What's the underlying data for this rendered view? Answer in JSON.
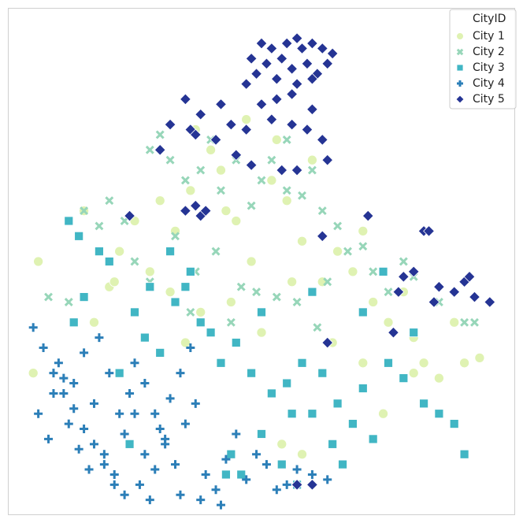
{
  "chart_data": {
    "type": "scatter",
    "legend_title": "CityID",
    "legend_loc": "upper right",
    "xlim": [
      0,
      100
    ],
    "ylim": [
      0,
      100
    ],
    "series": [
      {
        "name": "City 1",
        "color": "#dff2b2",
        "marker": "circle",
        "x": [
          6,
          5,
          15,
          20,
          22,
          25,
          30,
          33,
          36,
          40,
          42,
          45,
          48,
          52,
          55,
          58,
          60,
          62,
          65,
          68,
          70,
          72,
          75,
          78,
          80,
          82,
          85,
          88,
          90,
          93,
          28,
          32,
          38,
          44,
          50,
          56,
          64,
          70,
          74,
          80,
          37,
          47,
          53,
          58,
          17,
          21,
          43,
          54,
          46,
          35
        ],
        "values": [
          50,
          28,
          60,
          45,
          52,
          58,
          62,
          56,
          64,
          72,
          68,
          58,
          50,
          66,
          62,
          54,
          70,
          46,
          52,
          48,
          56,
          42,
          38,
          44,
          35,
          30,
          27,
          38,
          30,
          31,
          48,
          44,
          40,
          42,
          36,
          46,
          34,
          30,
          20,
          28,
          76,
          78,
          74,
          12,
          38,
          46,
          60,
          14,
          8,
          34
        ]
      },
      {
        "name": "City 2",
        "color": "#97d6b9",
        "marker": "x",
        "x": [
          8,
          12,
          15,
          18,
          20,
          28,
          30,
          32,
          35,
          38,
          40,
          42,
          45,
          48,
          50,
          52,
          55,
          58,
          60,
          62,
          65,
          67,
          70,
          72,
          75,
          78,
          80,
          85,
          90,
          92,
          25,
          33,
          37,
          41,
          46,
          53,
          57,
          61,
          44,
          49,
          36,
          28,
          23,
          55,
          63
        ],
        "values": [
          43,
          42,
          60,
          57,
          62,
          72,
          75,
          70,
          66,
          68,
          74,
          64,
          70,
          61,
          66,
          70,
          64,
          63,
          68,
          60,
          57,
          52,
          53,
          48,
          44,
          50,
          47,
          42,
          38,
          38,
          50,
          55,
          48,
          52,
          45,
          43,
          42,
          37,
          38,
          44,
          40,
          46,
          58,
          74,
          46
        ]
      },
      {
        "name": "City 3",
        "color": "#41b6c4",
        "marker": "square",
        "x": [
          12,
          14,
          18,
          20,
          15,
          13,
          25,
          27,
          30,
          33,
          35,
          38,
          40,
          42,
          45,
          48,
          50,
          52,
          55,
          58,
          60,
          62,
          65,
          68,
          70,
          72,
          75,
          78,
          80,
          82,
          85,
          88,
          90,
          22,
          24,
          28,
          32,
          36,
          44,
          46,
          50,
          54,
          56,
          60,
          64,
          66,
          70,
          74,
          43,
          57
        ],
        "values": [
          58,
          55,
          52,
          50,
          43,
          38,
          40,
          35,
          32,
          42,
          45,
          38,
          36,
          30,
          34,
          28,
          40,
          24,
          26,
          30,
          20,
          28,
          22,
          18,
          25,
          15,
          30,
          27,
          36,
          22,
          20,
          18,
          12,
          28,
          14,
          45,
          52,
          48,
          12,
          8,
          16,
          10,
          20,
          44,
          14,
          10,
          40,
          48,
          8,
          6
        ]
      },
      {
        "name": "City 4",
        "color": "#2c7fb8",
        "marker": "plus",
        "x": [
          5,
          7,
          9,
          11,
          6,
          8,
          10,
          13,
          15,
          17,
          12,
          14,
          16,
          18,
          20,
          22,
          24,
          19,
          21,
          23,
          25,
          27,
          29,
          31,
          33,
          26,
          28,
          30,
          32,
          34,
          36,
          9,
          11,
          13,
          15,
          17,
          19,
          21,
          23,
          25,
          27,
          29,
          31,
          35,
          37,
          39,
          41,
          43,
          45,
          47,
          49,
          51,
          53,
          55,
          57,
          60,
          63,
          34,
          38,
          42
        ],
        "values": [
          37,
          33,
          28,
          24,
          20,
          15,
          30,
          26,
          32,
          22,
          18,
          13,
          9,
          35,
          28,
          20,
          24,
          12,
          8,
          16,
          30,
          26,
          20,
          14,
          10,
          6,
          3,
          17,
          23,
          28,
          33,
          24,
          27,
          21,
          17,
          14,
          10,
          6,
          4,
          20,
          12,
          9,
          15,
          18,
          22,
          8,
          5,
          11,
          16,
          7,
          12,
          10,
          5,
          6,
          9,
          8,
          7,
          4,
          3,
          2
        ]
      },
      {
        "name": "City 5",
        "color": "#253494",
        "marker": "diamond",
        "x": [
          50,
          52,
          55,
          57,
          58,
          60,
          62,
          64,
          48,
          51,
          54,
          56,
          59,
          61,
          63,
          49,
          53,
          57,
          60,
          47,
          35,
          42,
          50,
          53,
          56,
          60,
          38,
          32,
          36,
          44,
          47,
          52,
          56,
          59,
          62,
          30,
          37,
          41,
          45,
          48,
          54,
          57,
          63,
          24,
          35,
          37,
          38,
          39,
          62,
          71,
          82,
          83,
          78,
          80,
          85,
          90,
          91,
          88,
          92,
          95,
          84,
          77,
          76,
          63,
          57,
          60
        ],
        "values": [
          93,
          92,
          93,
          94,
          92,
          93,
          92,
          91,
          90,
          89,
          90,
          88,
          89,
          87,
          89,
          87,
          86,
          85,
          86,
          85,
          82,
          81,
          81,
          82,
          83,
          80,
          79,
          77,
          76,
          77,
          76,
          78,
          77,
          76,
          74,
          72,
          75,
          74,
          71,
          69,
          68,
          68,
          70,
          59,
          60,
          61,
          59,
          60,
          55,
          59,
          56,
          56,
          47,
          48,
          45,
          46,
          47,
          44,
          43,
          42,
          42,
          44,
          36,
          34,
          6,
          6
        ]
      }
    ]
  }
}
